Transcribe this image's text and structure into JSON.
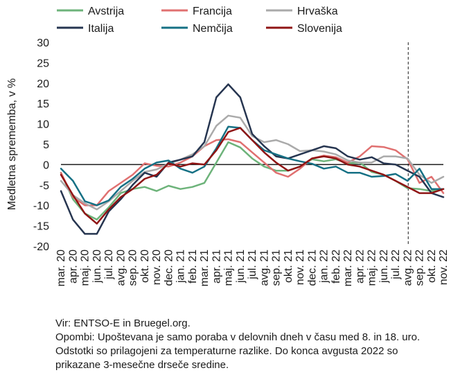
{
  "chart_data": {
    "type": "line",
    "ylabel": "Medletna sprememba, v %",
    "xlabel": "",
    "ylim": [
      -20,
      30
    ],
    "yticks": [
      -20,
      -15,
      -10,
      -5,
      0,
      5,
      10,
      15,
      20,
      25,
      30
    ],
    "grid": false,
    "legend_position": "top",
    "x": [
      "mar.20",
      "apr.20",
      "maj.20",
      "jun.20",
      "jul.20",
      "avg.20",
      "sep.20",
      "okt.20",
      "nov.20",
      "dec.20",
      "jan.21",
      "feb.21",
      "mar.21",
      "apr.21",
      "maj.21",
      "jun.21",
      "jul.21",
      "avg.21",
      "sep.21",
      "okt.21",
      "nov.21",
      "dec.21",
      "jan.22",
      "feb.22",
      "mar.22",
      "apr.22",
      "maj.22",
      "jun.22",
      "jul.22",
      "avg.22",
      "sep.22",
      "okt.22",
      "nov.22"
    ],
    "x_tick_labels": [
      "mar. 20",
      "apr. 20",
      "maj. 20",
      "jun. 20",
      "jul. 20",
      "avg. 20",
      "sep. 20",
      "okt. 20",
      "nov. 20",
      "dec. 20",
      "jan. 21",
      "feb. 21",
      "mar. 21",
      "apr. 21",
      "maj. 21",
      "jun. 21",
      "jul. 21",
      "avg. 21",
      "sep. 21",
      "okt. 21",
      "nov. 21",
      "dec. 21",
      "jan. 22",
      "feb. 22",
      "mar. 22",
      "apr. 22",
      "maj. 22",
      "jun. 22",
      "jul. 22",
      "avg. 22",
      "sep. 22",
      "okt. 22",
      "nov. 22"
    ],
    "vline_at": "avg.22",
    "series": [
      {
        "name": "Avstrija",
        "color": "#6db37a",
        "values": [
          -2,
          -8.5,
          -12,
          -13.5,
          -10.5,
          -7,
          -6,
          -5.5,
          -6.5,
          -5.2,
          -6,
          -5.5,
          -4.5,
          0.5,
          5.5,
          4.2,
          1.5,
          -0.5,
          -1.5,
          -1.5,
          -0.5,
          1.3,
          0.8,
          1.3,
          0.3,
          0.5,
          -1.8,
          -2.5,
          -4,
          -5.8,
          -6,
          -6.5,
          -6
        ]
      },
      {
        "name": "Francija",
        "color": "#e07070",
        "values": [
          -2,
          -8,
          -10,
          -10,
          -6.5,
          -4.5,
          -2.5,
          0.3,
          -0.3,
          -0.5,
          0.5,
          2,
          4.5,
          6,
          6.2,
          5.5,
          3,
          0.5,
          -2,
          -3,
          -1,
          1.5,
          2.2,
          1.8,
          0.5,
          2,
          4.5,
          4.3,
          3.5,
          1.3,
          -4.5,
          -3,
          -7
        ]
      },
      {
        "name": "Hrvaška",
        "color": "#aaaaaa",
        "values": [
          -4,
          -7.5,
          -9.5,
          -11,
          -9,
          -6.5,
          -4,
          -1.8,
          -1.2,
          0.2,
          1.2,
          2.5,
          4.5,
          9.5,
          12,
          11.5,
          7,
          5.5,
          6,
          5,
          3.3,
          3.5,
          3.2,
          2.5,
          1,
          0.5,
          0.5,
          2,
          2,
          1.5,
          -2.5,
          -4.5,
          -3
        ]
      },
      {
        "name": "Italija",
        "color": "#263550",
        "values": [
          -6.5,
          -13.5,
          -17,
          -17,
          -11.5,
          -8.5,
          -5,
          -2,
          -3,
          0.5,
          1.2,
          2,
          5.5,
          16.5,
          19.7,
          16.5,
          7.5,
          4.5,
          2,
          1.5,
          2.5,
          3.5,
          4.5,
          4,
          2,
          1.2,
          1.8,
          0.3,
          0,
          -1.5,
          -3,
          -7,
          -8
        ]
      },
      {
        "name": "Nemčija",
        "color": "#157084",
        "values": [
          -1,
          -4,
          -9,
          -10,
          -8.8,
          -5.5,
          -3.5,
          -1,
          0.5,
          1,
          -1,
          -2,
          -0.5,
          4,
          9.3,
          9,
          6,
          3.5,
          2.5,
          1.5,
          0.8,
          0.2,
          -1,
          -0.5,
          -2,
          -2,
          -3,
          -2.8,
          -2.3,
          -4,
          -1,
          -6,
          -6
        ]
      },
      {
        "name": "Slovenija",
        "color": "#8f1414",
        "values": [
          -2.5,
          -7.5,
          -12,
          -14.5,
          -11,
          -8,
          -6,
          -3.5,
          -2.5,
          0.3,
          -0.5,
          0.3,
          0,
          3.5,
          8,
          9,
          6,
          3,
          0.5,
          -1.5,
          -0.5,
          1.5,
          2,
          1.5,
          0,
          -0.5,
          -1.5,
          -2.5,
          -4,
          -5.5,
          -7,
          -7,
          -6
        ]
      }
    ]
  },
  "footnotes": {
    "source": "Vir: ENTSO-E in Bruegel.org.",
    "note": "Opombi: Upoštevana je samo poraba v delovnih dneh v času med 8. in 18. uro. Odstotki so prilagojeni za temperaturne razlike. Do konca avgusta 2022 so prikazane 3-mesečne drseče sredine."
  }
}
